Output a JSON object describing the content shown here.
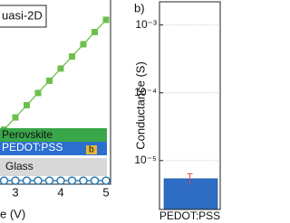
{
  "chart_data": [
    {
      "type": "line",
      "xlabel": "e (V)",
      "x": [
        2.75,
        3,
        3.25,
        3.5,
        3.75,
        4,
        4.25,
        4.5,
        4.75,
        5
      ],
      "series": [
        {
          "name": "uasi-2D",
          "color": "#6cbf4c",
          "marker": "square",
          "values": [
            2.88,
            3.57,
            4.26,
            4.95,
            5.64,
            6.33,
            7.01,
            7.7,
            8.39,
            9.08
          ]
        },
        {
          "color": "#2a7ab0",
          "marker": "circle",
          "values": [
            0,
            0,
            0,
            0,
            0,
            0,
            0,
            0,
            0,
            0
          ]
        }
      ],
      "xlim": [
        2.66,
        5.1
      ],
      "xticks": [
        3,
        4,
        5
      ],
      "ylim": [
        -0.2,
        10.2
      ],
      "annotations": [
        "Perovskite",
        "PEDOT:PSS",
        "b",
        "Glass"
      ]
    },
    {
      "type": "bar",
      "title": "b)",
      "ylabel": "Conductance (S)",
      "categories": [
        "PEDOT:PSS"
      ],
      "values": [
        5.4e-06
      ],
      "errors": [
        1e-06
      ],
      "color": "#2e6dc4",
      "error_color": "#e04848",
      "log_scale": true,
      "grid": true,
      "ylim": [
        1.9e-06,
        0.0022
      ],
      "yticks": [
        {
          "value": 1e-05,
          "label": "10⁻⁵"
        },
        {
          "value": 0.0001,
          "label": "10⁻⁴"
        },
        {
          "value": 0.001,
          "label": "10⁻³"
        }
      ]
    }
  ]
}
